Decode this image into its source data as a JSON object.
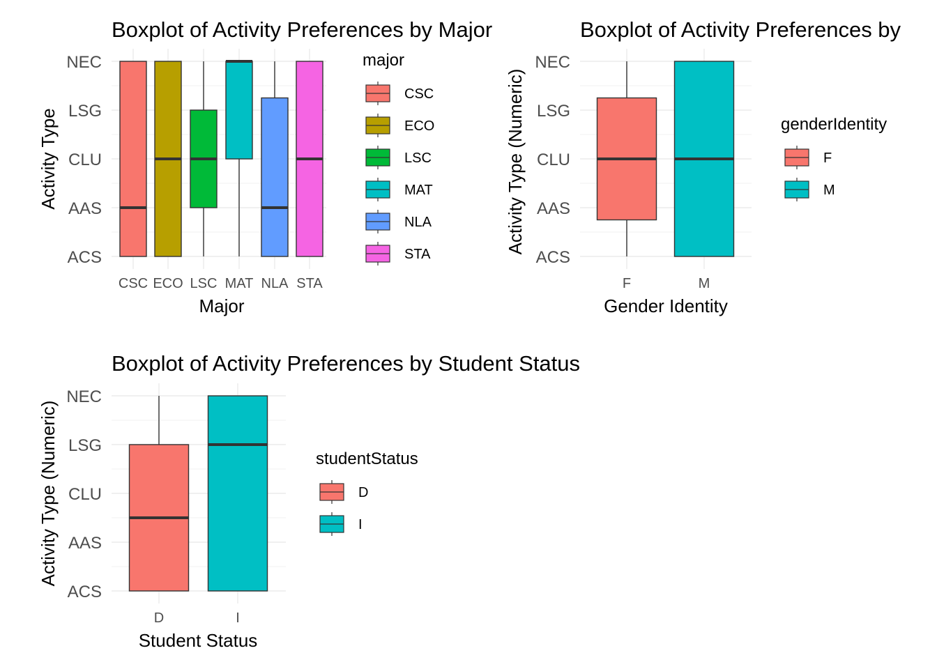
{
  "chart_data": [
    {
      "type": "boxplot",
      "title": "Boxplot of Activity Preferences by Major",
      "xlabel": "Major",
      "ylabel": "Activity Type",
      "y_levels": [
        "ACS",
        "AAS",
        "CLU",
        "LSG",
        "NEC"
      ],
      "ylim": [
        1,
        5
      ],
      "categories": [
        "CSC",
        "ECO",
        "LSC",
        "MAT",
        "NLA",
        "STA"
      ],
      "legend_title": "major",
      "legend_position": "right",
      "grid": true,
      "boxes": [
        {
          "category": "CSC",
          "color": "#F8766D",
          "min": 1,
          "q1": 1,
          "median": 2,
          "q3": 5,
          "max": 5
        },
        {
          "category": "ECO",
          "color": "#B79F00",
          "min": 1,
          "q1": 1,
          "median": 3,
          "q3": 5,
          "max": 5
        },
        {
          "category": "LSC",
          "color": "#00BA38",
          "min": 1,
          "q1": 2,
          "median": 3,
          "q3": 4,
          "max": 5
        },
        {
          "category": "MAT",
          "color": "#00BFC4",
          "min": 1,
          "q1": 3,
          "median": 5,
          "q3": 5,
          "max": 5
        },
        {
          "category": "NLA",
          "color": "#619CFF",
          "min": 1,
          "q1": 1,
          "median": 2,
          "q3": 4.25,
          "max": 5
        },
        {
          "category": "STA",
          "color": "#F564E3",
          "min": 1,
          "q1": 1,
          "median": 3,
          "q3": 5,
          "max": 5
        }
      ]
    },
    {
      "type": "boxplot",
      "title": "Boxplot of Activity Preferences by",
      "xlabel": "Gender Identity",
      "ylabel": "Activity Type (Numeric)",
      "y_levels": [
        "ACS",
        "AAS",
        "CLU",
        "LSG",
        "NEC"
      ],
      "ylim": [
        1,
        5
      ],
      "categories": [
        "F",
        "M"
      ],
      "legend_title": "genderIdentity",
      "legend_position": "right",
      "grid": true,
      "boxes": [
        {
          "category": "F",
          "color": "#F8766D",
          "min": 1,
          "q1": 1.75,
          "median": 3,
          "q3": 4.25,
          "max": 5
        },
        {
          "category": "M",
          "color": "#00BFC4",
          "min": 1,
          "q1": 1,
          "median": 3,
          "q3": 5,
          "max": 5
        }
      ]
    },
    {
      "type": "boxplot",
      "title": "Boxplot of Activity Preferences by Student Status",
      "xlabel": "Student Status",
      "ylabel": "Activity Type (Numeric)",
      "y_levels": [
        "ACS",
        "AAS",
        "CLU",
        "LSG",
        "NEC"
      ],
      "ylim": [
        1,
        5
      ],
      "categories": [
        "D",
        "I"
      ],
      "legend_title": "studentStatus",
      "legend_position": "right",
      "grid": true,
      "boxes": [
        {
          "category": "D",
          "color": "#F8766D",
          "min": 1,
          "q1": 1,
          "median": 2.5,
          "q3": 4,
          "max": 5
        },
        {
          "category": "I",
          "color": "#00BFC4",
          "min": 1,
          "q1": 1,
          "median": 4,
          "q3": 5,
          "max": 5
        }
      ]
    }
  ]
}
